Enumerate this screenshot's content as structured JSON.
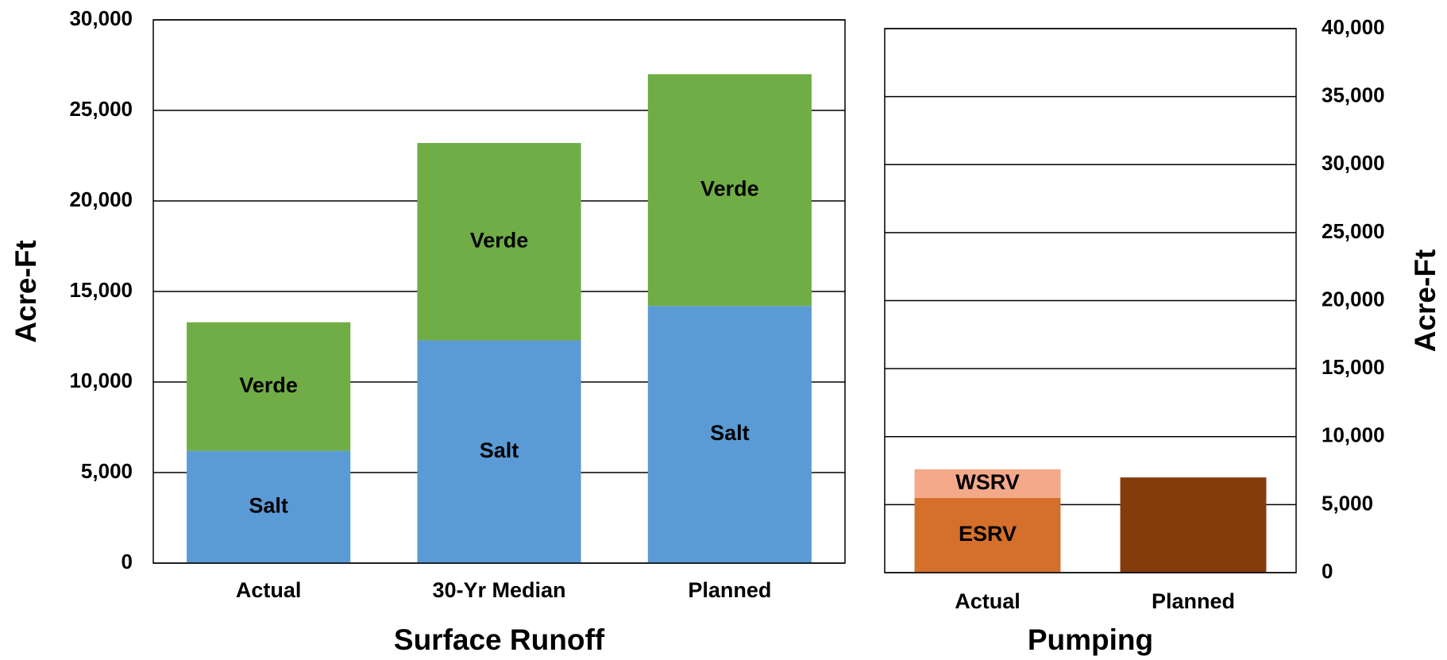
{
  "chart_data": [
    {
      "type": "bar",
      "stacked": true,
      "x_label": "Surface Runoff",
      "y_label": "Acre-Ft",
      "y_axis_position": "left",
      "categories": [
        "Actual",
        "30-Yr Median",
        "Planned"
      ],
      "series": [
        {
          "name": "Salt",
          "color": "#5b9bd5",
          "values": [
            6200,
            12300,
            14200
          ]
        },
        {
          "name": "Verde",
          "color": "#70ad47",
          "values": [
            7100,
            10900,
            12800
          ]
        }
      ],
      "ylim": [
        0,
        30000
      ],
      "yticks": [
        0,
        {
          "value": 5000,
          "label": "5,000"
        },
        {
          "value": 10000,
          "label": "10,000"
        },
        {
          "value": 15000,
          "label": "15,000"
        },
        {
          "value": 20000,
          "label": "20,000"
        },
        {
          "value": 25000,
          "label": "25,000"
        },
        {
          "value": 30000,
          "label": "30,000"
        }
      ],
      "grid": true
    },
    {
      "type": "bar",
      "stacked": true,
      "x_label": "Pumping",
      "y_label": "Acre-Ft",
      "y_axis_position": "right",
      "categories": [
        "Actual",
        "Planned"
      ],
      "series": [
        {
          "name": "ESRV",
          "color": "#d4702c",
          "values": [
            5500,
            null
          ]
        },
        {
          "name": "WSRV",
          "color": "#f4a98a",
          "values": [
            2100,
            null
          ]
        },
        {
          "color": "#843c0c",
          "values": [
            null,
            7000
          ]
        }
      ],
      "ylim": [
        0,
        40000
      ],
      "yticks": [
        0,
        {
          "value": 5000,
          "label": "5,000"
        },
        {
          "value": 10000,
          "label": "10,000"
        },
        {
          "value": 15000,
          "label": "15,000"
        },
        {
          "value": 20000,
          "label": "20,000"
        },
        {
          "value": 25000,
          "label": "25,000"
        },
        {
          "value": 30000,
          "label": "30,000"
        },
        {
          "value": 35000,
          "label": "35,000"
        },
        {
          "value": 40000,
          "label": "40,000"
        }
      ],
      "grid": true
    }
  ]
}
